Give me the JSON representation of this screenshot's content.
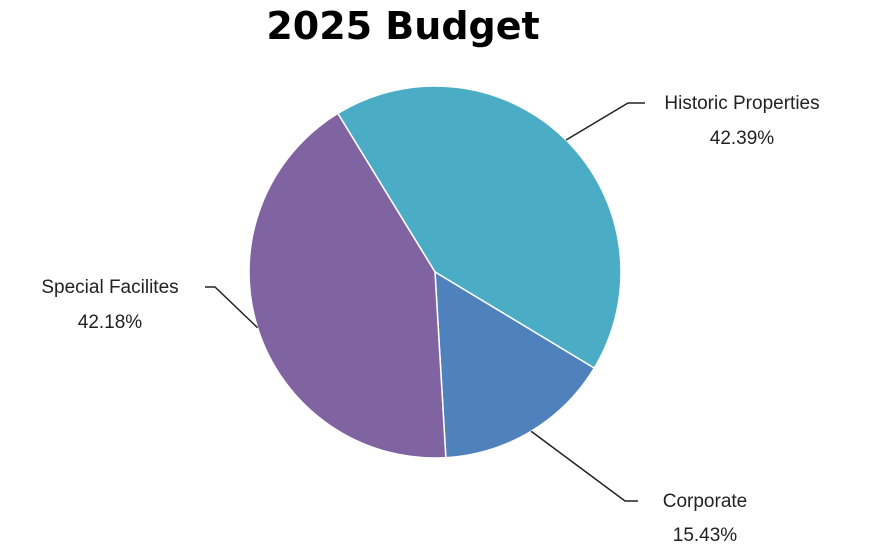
{
  "chart_data": {
    "type": "pie",
    "title": "2025 Budget",
    "slices": [
      {
        "label": "Historic Properties",
        "value": 42.39,
        "value_label": "42.39%",
        "color": "#4BACC6"
      },
      {
        "label": "Corporate",
        "value": 15.43,
        "value_label": "15.43%",
        "color": "#4F81BD"
      },
      {
        "label": "Special Facilites",
        "value": 42.18,
        "value_label": "42.18%",
        "color": "#8064A2"
      }
    ],
    "legend": "none",
    "data_labels": "outside with leader lines"
  }
}
